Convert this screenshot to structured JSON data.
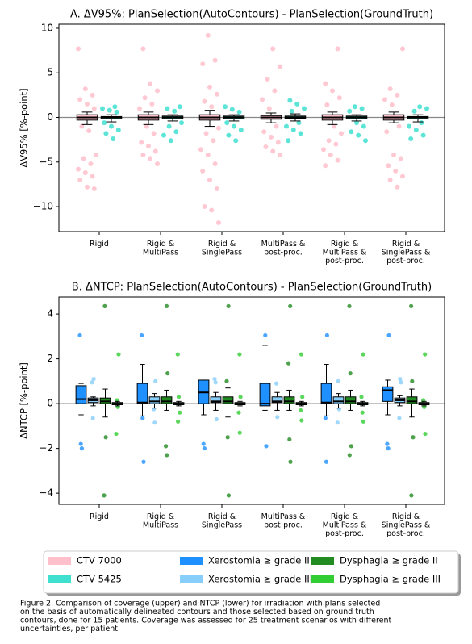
{
  "chart_data": [
    {
      "type": "box",
      "title": "A. ΔV95%: PlanSelection(AutoContours) - PlanSelection(GroundTruth)",
      "ylabel": "ΔV95% [%-point]",
      "categories": [
        [
          "Rigid"
        ],
        [
          "Rigid &",
          "MultiPass"
        ],
        [
          "Rigid &",
          "SinglePass"
        ],
        [
          "MultiPass &",
          "post-proc."
        ],
        [
          "Rigid &",
          "MultiPass &",
          "post-proc."
        ],
        [
          "Rigid &",
          "SinglePass &",
          "post-proc."
        ]
      ],
      "ylim": [
        -12.8,
        10.45
      ],
      "yticks": [
        {
          "value": -10,
          "label": "−10"
        },
        {
          "value": -5,
          "label": "−5"
        },
        0,
        5,
        10
      ],
      "hline": 0,
      "series": [
        {
          "name": "CTV 7000",
          "color": "#ffc0cb",
          "boxes": [
            {
              "whislo": -0.8,
              "q1": -0.3,
              "med": 0,
              "q3": 0.3,
              "whishi": 0.6,
              "points": [
                7.7,
                3.2,
                2.5,
                2.0,
                1.5,
                1.0,
                -1.0,
                -1.5,
                -4.2,
                -4.6,
                -5.2,
                -5.8,
                -6.2,
                -6.6,
                -7.0,
                -7.8,
                -8.0
              ]
            },
            {
              "whislo": -0.8,
              "q1": -0.3,
              "med": 0,
              "q3": 0.3,
              "whishi": 0.6,
              "points": [
                7.7,
                3.8,
                3.0,
                2.2,
                1.5,
                1.0,
                -1.0,
                -1.8,
                -2.8,
                -3.2,
                -3.8,
                -4.2,
                -4.6,
                -5.2
              ]
            },
            {
              "whislo": -1.0,
              "q1": -0.3,
              "med": 0,
              "q3": 0.3,
              "whishi": 0.8,
              "points": [
                9.2,
                6.4,
                6.0,
                3.4,
                2.6,
                1.8,
                1.2,
                -1.2,
                -1.8,
                -2.6,
                -3.6,
                -4.2,
                -5.2,
                -6.0,
                -7.0,
                -8.0,
                -10.0,
                -10.4,
                -11.8
              ]
            },
            {
              "whislo": -0.6,
              "q1": -0.2,
              "med": 0,
              "q3": 0.2,
              "whishi": 0.5,
              "points": [
                7.7,
                5.7,
                4.3,
                3.0,
                2.0,
                1.0,
                -1.0,
                -1.6,
                -2.2,
                -2.8,
                -3.3,
                -3.8,
                -4.2
              ]
            },
            {
              "whislo": -0.8,
              "q1": -0.3,
              "med": 0,
              "q3": 0.3,
              "whishi": 0.6,
              "points": [
                7.7,
                3.8,
                3.0,
                2.2,
                1.4,
                -1.0,
                -1.8,
                -2.6,
                -3.0,
                -3.6,
                -4.2,
                -4.8,
                -5.4
              ]
            },
            {
              "whislo": -0.6,
              "q1": -0.3,
              "med": 0,
              "q3": 0.3,
              "whishi": 0.6,
              "points": [
                7.7,
                3.2,
                2.5,
                2.0,
                1.4,
                -1.0,
                -1.6,
                -4.2,
                -4.6,
                -5.4,
                -6.0,
                -6.6,
                -7.0,
                -7.8
              ]
            }
          ]
        },
        {
          "name": "CTV 5425",
          "color": "#40e0d0",
          "boxes": [
            {
              "whislo": -0.5,
              "q1": -0.15,
              "med": 0,
              "q3": 0.1,
              "whishi": 0.3,
              "points": [
                1.2,
                1.0,
                0.8,
                0.6,
                -0.6,
                -1.0,
                -1.4,
                -1.8,
                -2.4
              ]
            },
            {
              "whislo": -0.4,
              "q1": -0.15,
              "med": 0,
              "q3": 0.15,
              "whishi": 0.3,
              "points": [
                1.2,
                1.0,
                0.7,
                -0.6,
                -1.0,
                -1.6,
                -2.0,
                -2.6
              ]
            },
            {
              "whislo": -0.4,
              "q1": -0.15,
              "med": 0,
              "q3": 0.15,
              "whishi": 0.3,
              "points": [
                1.2,
                0.9,
                0.6,
                -0.6,
                -1.0,
                -1.4,
                -2.0,
                -2.6
              ]
            },
            {
              "whislo": -0.4,
              "q1": -0.1,
              "med": 0,
              "q3": 0.15,
              "whishi": 0.4,
              "points": [
                1.9,
                1.5,
                1.0,
                0.7,
                -0.6,
                -1.0,
                -1.4,
                -1.8,
                -2.6
              ]
            },
            {
              "whislo": -0.4,
              "q1": -0.15,
              "med": 0,
              "q3": 0.15,
              "whishi": 0.3,
              "points": [
                1.2,
                1.0,
                0.7,
                -0.6,
                -1.0,
                -1.6,
                -2.0,
                -2.6
              ]
            },
            {
              "whislo": -0.5,
              "q1": -0.15,
              "med": 0,
              "q3": 0.1,
              "whishi": 0.3,
              "points": [
                1.2,
                1.0,
                0.7,
                -0.6,
                -1.0,
                -1.4,
                -2.0,
                -2.4
              ]
            }
          ]
        }
      ]
    },
    {
      "type": "box",
      "title": "B. ΔNTCP: PlanSelection(AutoContours) - PlanSelection(GroundTruth)",
      "ylabel": "ΔNTCP [%-point]",
      "categories": [
        [
          "Rigid"
        ],
        [
          "Rigid &",
          "MultiPass"
        ],
        [
          "Rigid &",
          "SinglePass"
        ],
        [
          "MultiPass &",
          "post-proc."
        ],
        [
          "Rigid &",
          "MultiPass &",
          "post-proc."
        ],
        [
          "Rigid &",
          "SinglePass &",
          "post-proc."
        ]
      ],
      "ylim": [
        -4.5,
        4.76
      ],
      "yticks": [
        {
          "value": -4,
          "label": "−4"
        },
        {
          "value": -2,
          "label": "−2"
        },
        0,
        2,
        4
      ],
      "hline": 0,
      "series": [
        {
          "name": "Xerostomia ≥ grade II",
          "color": "#1e90ff",
          "boxes": [
            {
              "whislo": -0.5,
              "q1": 0,
              "med": 0.2,
              "q3": 0.8,
              "whishi": 0.9,
              "points": [
                3.05,
                -1.8,
                -2.0
              ]
            },
            {
              "whislo": -0.55,
              "q1": 0,
              "med": 0.05,
              "q3": 0.9,
              "whishi": 1.75,
              "points": [
                3.05,
                -0.65,
                -2.6
              ]
            },
            {
              "whislo": -0.5,
              "q1": 0,
              "med": 0.5,
              "q3": 1.05,
              "whishi": 1.05,
              "points": [
                -1.8,
                -2.0
              ]
            },
            {
              "whislo": -0.3,
              "q1": -0.1,
              "med": 0,
              "q3": 0.9,
              "whishi": 2.6,
              "points": [
                3.05,
                -1.9
              ]
            },
            {
              "whislo": -0.55,
              "q1": 0,
              "med": 0.05,
              "q3": 0.9,
              "whishi": 1.75,
              "points": [
                3.05,
                -0.65,
                -2.6
              ]
            },
            {
              "whislo": -0.5,
              "q1": 0.1,
              "med": 0.6,
              "q3": 0.75,
              "whishi": 1.05,
              "points": [
                3.05,
                -1.8,
                -2.0
              ]
            }
          ]
        },
        {
          "name": "Xerostomia ≥ grade III",
          "color": "#87cefa",
          "boxes": [
            {
              "whislo": -0.1,
              "q1": 0.05,
              "med": 0.15,
              "q3": 0.25,
              "whishi": 0.3,
              "points": [
                1.1,
                0.95,
                -0.65
              ]
            },
            {
              "whislo": -0.2,
              "q1": 0,
              "med": 0.1,
              "q3": 0.3,
              "whishi": 0.45,
              "points": [
                1.0,
                -0.25,
                -0.85
              ]
            },
            {
              "whislo": -0.3,
              "q1": 0.05,
              "med": 0.1,
              "q3": 0.3,
              "whishi": 0.5,
              "points": [
                1.1,
                0.95,
                -0.7
              ]
            },
            {
              "whislo": -0.3,
              "q1": 0.05,
              "med": 0.1,
              "q3": 0.3,
              "whishi": 0.5,
              "points": [
                0.9,
                -0.6
              ]
            },
            {
              "whislo": -0.2,
              "q1": 0,
              "med": 0.1,
              "q3": 0.3,
              "whishi": 0.45,
              "points": [
                1.0,
                -0.25,
                -0.85
              ]
            },
            {
              "whislo": -0.1,
              "q1": 0.05,
              "med": 0.15,
              "q3": 0.25,
              "whishi": 0.35,
              "points": [
                1.1,
                0.95,
                -0.65
              ]
            }
          ]
        },
        {
          "name": "Dysphagia ≥ grade II",
          "color": "#228b22",
          "boxes": [
            {
              "whislo": -0.6,
              "q1": 0,
              "med": 0.1,
              "q3": 0.25,
              "whishi": 0.65,
              "points": [
                4.35,
                -1.5,
                -4.1
              ]
            },
            {
              "whislo": -0.3,
              "q1": 0,
              "med": 0.1,
              "q3": 0.3,
              "whishi": 0.6,
              "points": [
                4.35,
                1.35,
                -1.9,
                -2.3
              ]
            },
            {
              "whislo": -0.6,
              "q1": 0,
              "med": 0.1,
              "q3": 0.3,
              "whishi": 0.7,
              "points": [
                4.35,
                1.0,
                -1.5,
                -4.1
              ]
            },
            {
              "whislo": -0.3,
              "q1": 0,
              "med": 0.1,
              "q3": 0.3,
              "whishi": 0.6,
              "points": [
                4.35,
                1.8,
                -1.6,
                -2.6
              ]
            },
            {
              "whislo": -0.3,
              "q1": 0,
              "med": 0.1,
              "q3": 0.3,
              "whishi": 0.6,
              "points": [
                4.35,
                1.35,
                -1.9,
                -2.3
              ]
            },
            {
              "whislo": -0.6,
              "q1": 0,
              "med": 0.1,
              "q3": 0.3,
              "whishi": 0.65,
              "points": [
                4.35,
                1.0,
                -1.5,
                -4.1
              ]
            }
          ]
        },
        {
          "name": "Dysphagia ≥ grade III",
          "color": "#32cd32",
          "boxes": [
            {
              "whislo": -0.1,
              "q1": -0.05,
              "med": 0,
              "q3": 0.05,
              "whishi": 0.1,
              "points": [
                2.2,
                0.15,
                -0.15,
                -1.35
              ]
            },
            {
              "whislo": -0.1,
              "q1": -0.05,
              "med": 0,
              "q3": 0.05,
              "whishi": 0.1,
              "points": [
                2.2,
                0.3,
                -0.4,
                -0.8
              ]
            },
            {
              "whislo": -0.1,
              "q1": -0.05,
              "med": 0,
              "q3": 0.05,
              "whishi": 0.1,
              "points": [
                2.2,
                0.3,
                -0.4,
                -1.3
              ]
            },
            {
              "whislo": -0.1,
              "q1": -0.05,
              "med": 0,
              "q3": 0.05,
              "whishi": 0.1,
              "points": [
                2.2,
                0.3,
                -0.3,
                -0.75
              ]
            },
            {
              "whislo": -0.1,
              "q1": -0.05,
              "med": 0,
              "q3": 0.05,
              "whishi": 0.1,
              "points": [
                2.2,
                0.3,
                -0.4,
                -0.8
              ]
            },
            {
              "whislo": -0.1,
              "q1": -0.05,
              "med": 0,
              "q3": 0.05,
              "whishi": 0.1,
              "points": [
                2.2,
                0.15,
                -0.15,
                -1.35
              ]
            }
          ]
        }
      ]
    }
  ],
  "caption": [
    "Figure 2. Comparison of coverage (upper) and NTCP (lower) for irradiation with plans selected",
    "on the basis of automatically delineated contours and those selected based on ground truth",
    "contours, done for 15 patients. Coverage was assessed for 25 treatment scenarios with different",
    "uncertainties, per patient."
  ]
}
